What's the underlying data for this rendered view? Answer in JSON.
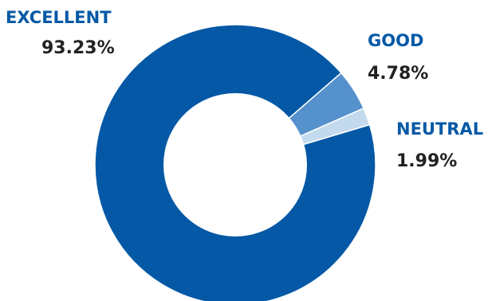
{
  "chart_data": {
    "type": "pie",
    "donut": true,
    "categories": [
      "EXCELLENT",
      "GOOD",
      "NEUTRAL"
    ],
    "values": [
      93.23,
      4.78,
      1.99
    ],
    "value_labels": [
      "93.23%",
      "4.78%",
      "1.99%"
    ],
    "colors": [
      "#0458a6",
      "#5591cc",
      "#c2d9ee"
    ],
    "label_colors": [
      "#0458a6",
      "#0458a6",
      "#0458a6"
    ],
    "title": "",
    "legend": "none"
  }
}
